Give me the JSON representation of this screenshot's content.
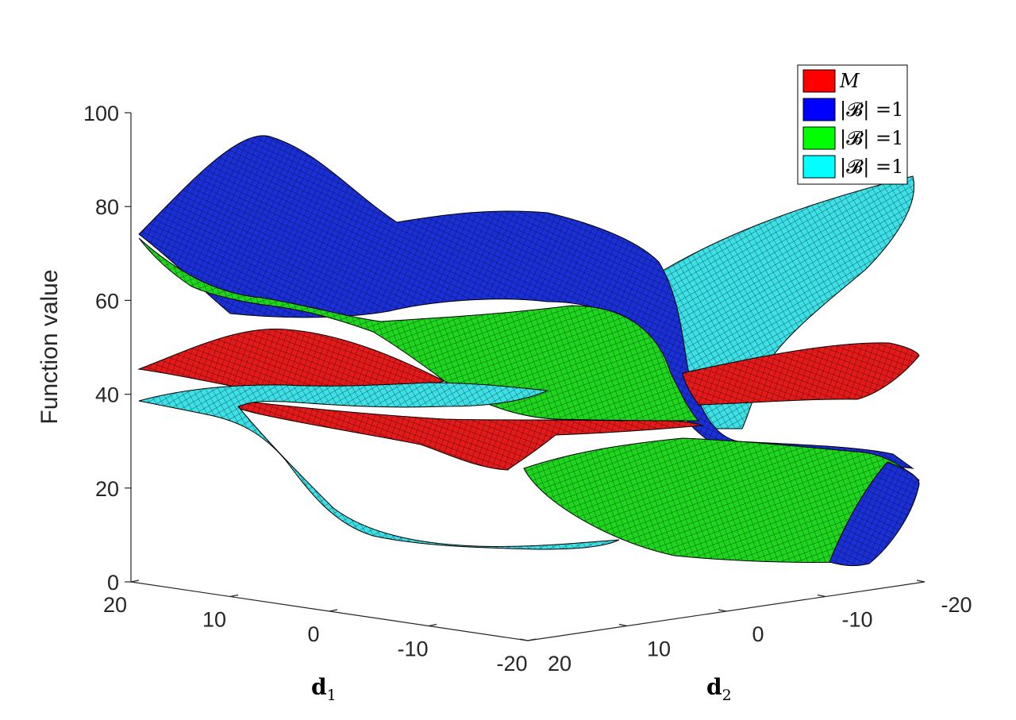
{
  "chart_data": {
    "type": "surface",
    "zlabel": "Function value",
    "xlabel": "d",
    "xlabel_sub": "1",
    "ylabel": "d",
    "ylabel_sub": "2",
    "zlim": [
      0,
      100
    ],
    "z_ticks": [
      "0",
      "20",
      "40",
      "60",
      "80",
      "100"
    ],
    "d1_ticks": [
      "20",
      "10",
      "0",
      "-10",
      "-20"
    ],
    "d2_ticks": [
      "20",
      "10",
      "0",
      "-10",
      "-20"
    ],
    "d1_range": [
      -20,
      20
    ],
    "d2_range": [
      -20,
      20
    ],
    "legend_placement": "top-right",
    "series": [
      {
        "name": "M",
        "color": "#ff0000"
      },
      {
        "name": "|𝓑| =1",
        "color": "#0000ff"
      },
      {
        "name": "|𝓑| =1",
        "color": "#00ff00"
      },
      {
        "name": "|𝓑| =1",
        "color": "#00ffff"
      }
    ]
  }
}
